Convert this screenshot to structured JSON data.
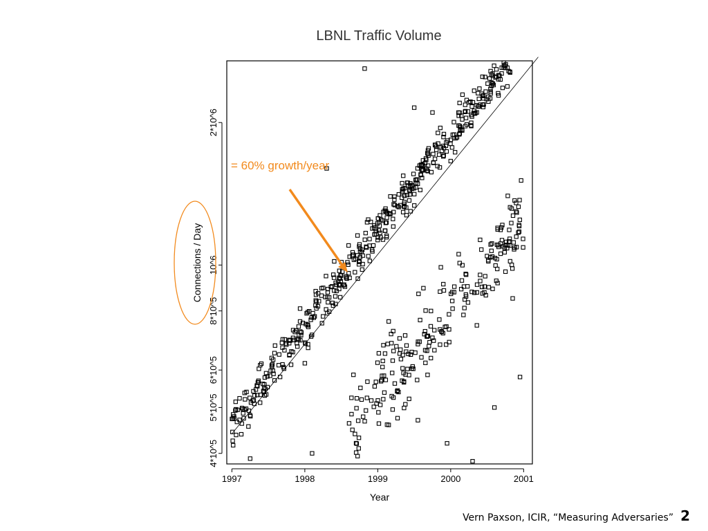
{
  "slide": {
    "annotation": "= 60% growth/year",
    "footer": "Vern Paxson, ICIR, “Measuring Adversaries”",
    "page_number": "2",
    "colors": {
      "annotation": "#f28a1d",
      "marker": "#000000"
    }
  },
  "chart_data": {
    "type": "scatter",
    "title": "LBNL Traffic Volume",
    "xlabel": "Year",
    "ylabel": "Connections / Day",
    "xlim": [
      1996.93,
      2001.12
    ],
    "ylim": [
      380000,
      2700000
    ],
    "y_scale": "log",
    "x_ticks": [
      1997,
      1998,
      1999,
      2000,
      2001
    ],
    "x_tick_labels": [
      "1997",
      "1998",
      "1999",
      "2000",
      "2001"
    ],
    "y_ticks": [
      400000,
      500000,
      600000,
      800000,
      1000000,
      2000000
    ],
    "y_tick_labels": [
      "4*10^5",
      "5*10^5",
      "6*10^5",
      "8*10^5",
      "10^6",
      "2*10^6"
    ],
    "grid": false,
    "trend_line": {
      "type": "exponential",
      "growth_rate": "60%",
      "from": [
        1997.0,
        440000
      ],
      "to": [
        2001.2,
        2750000
      ]
    },
    "series": [
      {
        "marker": "open-square",
        "main_band": {
          "x_start": 1997.0,
          "x_end": 2001.0,
          "y_start": 460000,
          "growth": 1.6,
          "count": 520
        },
        "lower_cluster": {
          "x_start": 1998.6,
          "x_end": 2001.0,
          "y_start": 440000,
          "growth": 1.55,
          "count": 230
        },
        "scattered_points": [
          [
            1998.82,
            2600000
          ],
          [
            1999.5,
            2150000
          ],
          [
            1999.75,
            2100000
          ],
          [
            1998.3,
            1600000
          ],
          [
            1998.0,
            620000
          ],
          [
            1997.45,
            530000
          ],
          [
            1998.55,
            900000
          ],
          [
            1998.4,
            940000
          ],
          [
            1999.1,
            650000
          ],
          [
            1999.3,
            700000
          ],
          [
            1999.55,
            470000
          ],
          [
            1999.95,
            420000
          ],
          [
            2000.3,
            385000
          ],
          [
            1997.25,
            390000
          ],
          [
            1998.1,
            400000
          ],
          [
            1998.95,
            1200000
          ],
          [
            2000.95,
            580000
          ],
          [
            2000.6,
            500000
          ],
          [
            2000.85,
            850000
          ],
          [
            2000.05,
            900000
          ],
          [
            1999.15,
            760000
          ],
          [
            1998.6,
            1100000
          ]
        ]
      }
    ]
  }
}
